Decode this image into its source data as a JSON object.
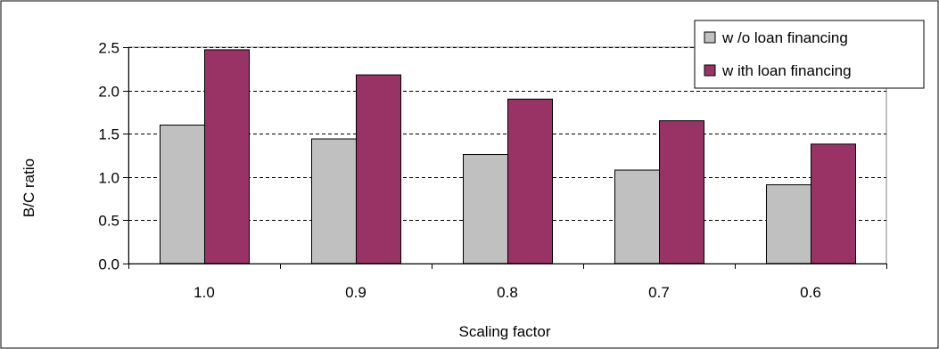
{
  "chart_data": {
    "type": "bar",
    "title": "",
    "xlabel": "Scaling factor",
    "ylabel": "B/C ratio",
    "categories": [
      "1.0",
      "0.9",
      "0.8",
      "0.7",
      "0.6"
    ],
    "series": [
      {
        "name": "w /o loan financing",
        "color": "#c0c0c0",
        "values": [
          1.6,
          1.44,
          1.26,
          1.08,
          0.91
        ]
      },
      {
        "name": "w ith loan financing",
        "color": "#993366",
        "values": [
          2.47,
          2.18,
          1.9,
          1.65,
          1.38
        ]
      }
    ],
    "ylim": [
      0,
      2.5
    ],
    "yticks": [
      "0.0",
      "0.5",
      "1.0",
      "1.5",
      "2.0",
      "2.5"
    ],
    "grid": true,
    "legend_position": "top-right"
  }
}
